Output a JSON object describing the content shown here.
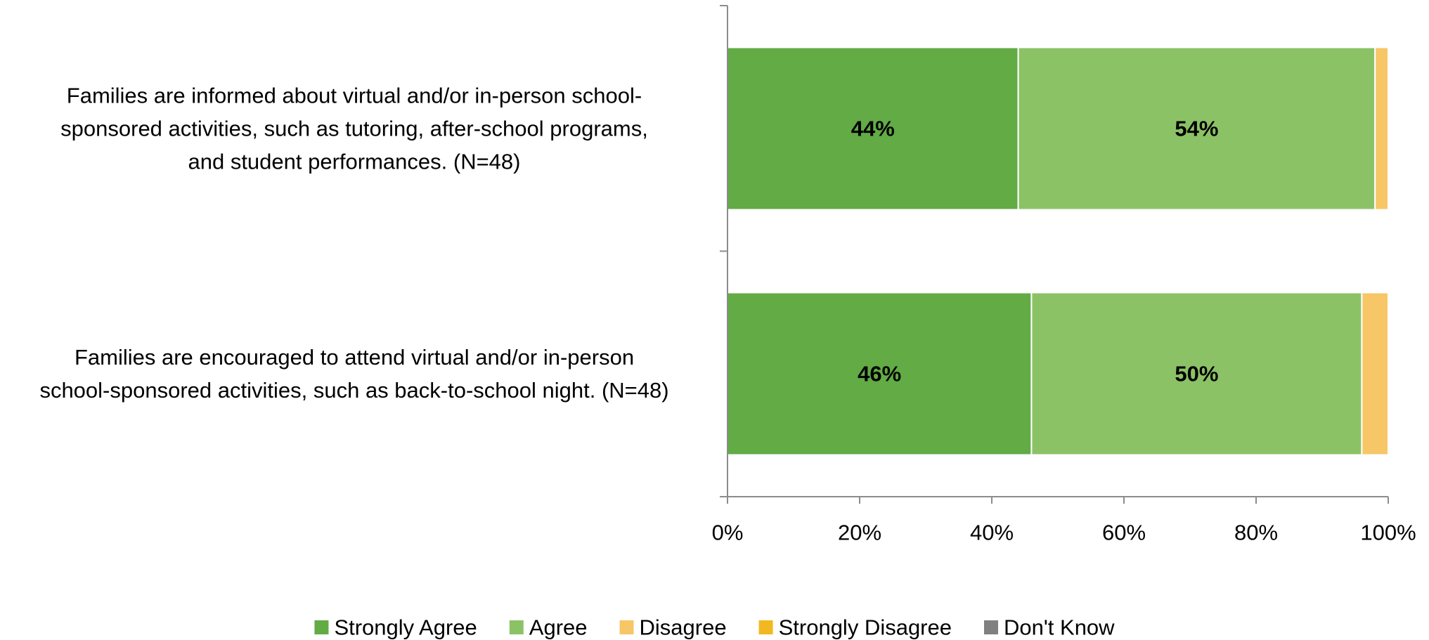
{
  "chart_data": {
    "type": "bar",
    "orientation": "horizontal",
    "stacked": true,
    "title": "",
    "xlabel": "",
    "ylabel": "",
    "xlim": [
      0,
      100
    ],
    "x_ticks": [
      "0%",
      "20%",
      "40%",
      "60%",
      "80%",
      "100%"
    ],
    "categories": [
      {
        "lines": [
          "Families are informed about virtual and/or in-person school-",
          "sponsored activities, such as tutoring, after-school programs,",
          "and student performances. (N=48)"
        ]
      },
      {
        "lines": [
          "Families are encouraged to attend virtual and/or in-person",
          "school-sponsored activities, such as back-to-school night. (N=48)"
        ]
      }
    ],
    "series": [
      {
        "name": "Strongly Agree",
        "color": "#62ab45",
        "values": [
          44,
          46
        ],
        "labels": [
          "44%",
          "46%"
        ]
      },
      {
        "name": "Agree",
        "color": "#8cc266",
        "values": [
          54,
          50
        ],
        "labels": [
          "54%",
          "50%"
        ]
      },
      {
        "name": "Disagree",
        "color": "#f6c667",
        "values": [
          2,
          4
        ],
        "labels": [
          "",
          ""
        ]
      },
      {
        "name": "Strongly Disagree",
        "color": "#f2b820",
        "values": [
          0,
          0
        ],
        "labels": [
          "",
          ""
        ]
      },
      {
        "name": "Don't Know",
        "color": "#808080",
        "values": [
          0,
          0
        ],
        "labels": [
          "",
          ""
        ]
      }
    ],
    "grid": false,
    "legend_position": "bottom"
  }
}
